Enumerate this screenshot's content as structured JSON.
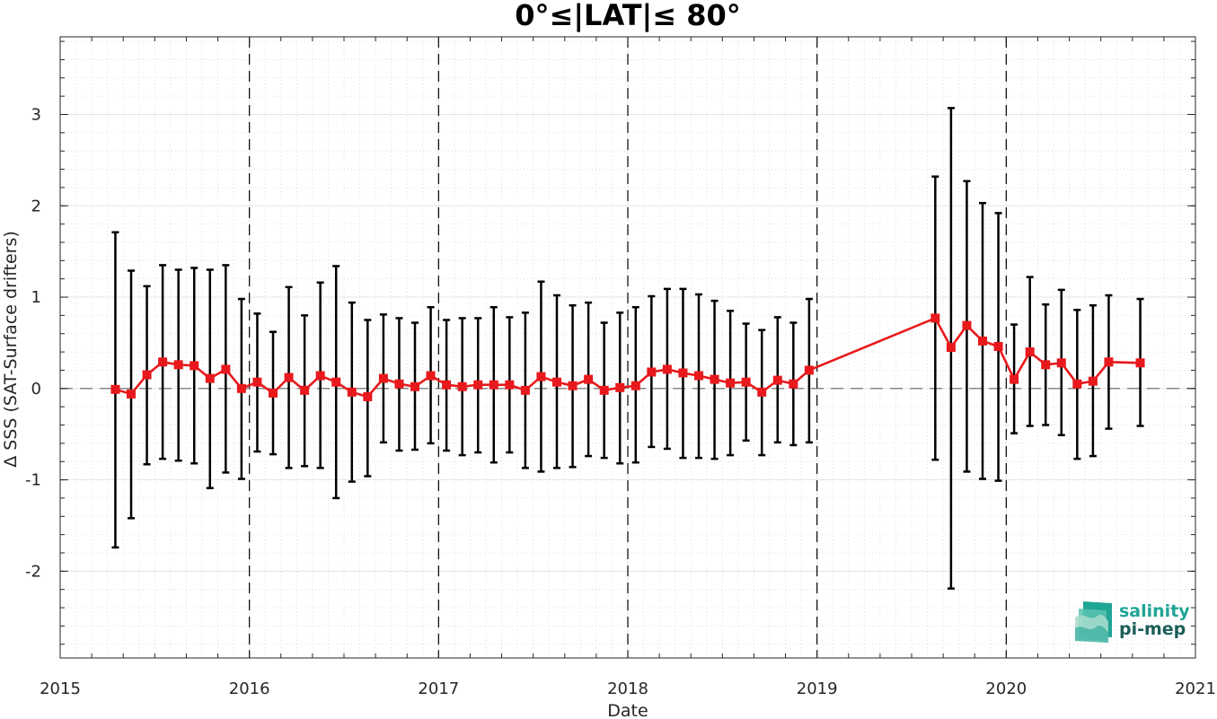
{
  "chart_data": {
    "type": "line",
    "title": "0°≤|LAT|≤ 80°",
    "xlabel": "Date",
    "ylabel": "Δ SSS (SAT-Surface drifters)",
    "xlim": [
      2015,
      2021
    ],
    "ylim": [
      -2.95,
      3.85
    ],
    "x_ticks": [
      "2015",
      "2016",
      "2017",
      "2018",
      "2019",
      "2020",
      "2021"
    ],
    "y_ticks": [
      "-2",
      "-1",
      "0",
      "1",
      "2",
      "3"
    ],
    "grid": true,
    "vertical_dashed_lines": [
      2016,
      2017,
      2018,
      2019,
      2020
    ],
    "zero_reference_line": 0,
    "colors": {
      "series": "#e8191c",
      "errorbar": "#000000",
      "logo": "#1fa596"
    },
    "logo_text": [
      "salinity",
      "pi-mep"
    ],
    "series": [
      {
        "x": [
          "2015-04",
          "2015-05",
          "2015-06",
          "2015-07",
          "2015-08",
          "2015-09",
          "2015-10",
          "2015-11",
          "2015-12",
          "2016-01",
          "2016-02",
          "2016-03",
          "2016-04",
          "2016-05",
          "2016-06",
          "2016-07",
          "2016-08",
          "2016-09",
          "2016-10",
          "2016-11",
          "2016-12",
          "2017-01",
          "2017-02",
          "2017-03",
          "2017-04",
          "2017-05",
          "2017-06",
          "2017-07",
          "2017-08",
          "2017-09",
          "2017-10",
          "2017-11",
          "2017-12",
          "2018-01",
          "2018-02",
          "2018-03",
          "2018-04",
          "2018-05",
          "2018-06",
          "2018-07",
          "2018-08",
          "2018-09",
          "2018-10",
          "2018-11",
          "2018-12",
          "2019-08",
          "2019-09",
          "2019-10",
          "2019-11",
          "2019-12",
          "2020-01",
          "2020-02",
          "2020-03",
          "2020-04",
          "2020-05",
          "2020-06",
          "2020-07",
          "2020-09"
        ],
        "values": [
          -0.01,
          -0.06,
          0.15,
          0.29,
          0.26,
          0.25,
          0.11,
          0.21,
          0.0,
          0.07,
          -0.05,
          0.12,
          -0.02,
          0.14,
          0.07,
          -0.04,
          -0.09,
          0.11,
          0.05,
          0.02,
          0.14,
          0.04,
          0.02,
          0.04,
          0.04,
          0.04,
          -0.02,
          0.13,
          0.07,
          0.03,
          0.1,
          -0.02,
          0.01,
          0.03,
          0.18,
          0.21,
          0.17,
          0.14,
          0.1,
          0.06,
          0.07,
          -0.04,
          0.09,
          0.05,
          0.2,
          0.77,
          0.45,
          0.69,
          0.52,
          0.46,
          0.1,
          0.4,
          0.26,
          0.28,
          0.05,
          0.08,
          0.29,
          0.28
        ],
        "err_low": [
          -1.74,
          -1.42,
          -0.83,
          -0.77,
          -0.79,
          -0.82,
          -1.09,
          -0.92,
          -0.99,
          -0.69,
          -0.72,
          -0.87,
          -0.85,
          -0.87,
          -1.2,
          -1.02,
          -0.96,
          -0.59,
          -0.68,
          -0.67,
          -0.6,
          -0.68,
          -0.73,
          -0.7,
          -0.81,
          -0.7,
          -0.87,
          -0.91,
          -0.87,
          -0.86,
          -0.74,
          -0.76,
          -0.82,
          -0.81,
          -0.64,
          -0.66,
          -0.76,
          -0.76,
          -0.77,
          -0.73,
          -0.57,
          -0.73,
          -0.59,
          -0.62,
          -0.59,
          -0.78,
          -2.19,
          -0.91,
          -0.99,
          -1.01,
          -0.49,
          -0.41,
          -0.4,
          -0.51,
          -0.77,
          -0.74,
          -0.44,
          -0.41
        ],
        "err_high": [
          1.71,
          1.29,
          1.12,
          1.35,
          1.3,
          1.32,
          1.3,
          1.35,
          0.98,
          0.82,
          0.62,
          1.11,
          0.8,
          1.16,
          1.34,
          0.94,
          0.75,
          0.81,
          0.77,
          0.72,
          0.89,
          0.75,
          0.77,
          0.77,
          0.89,
          0.78,
          0.83,
          1.17,
          1.02,
          0.91,
          0.94,
          0.72,
          0.83,
          0.89,
          1.01,
          1.09,
          1.09,
          1.03,
          0.96,
          0.85,
          0.71,
          0.64,
          0.78,
          0.72,
          0.98,
          2.32,
          3.07,
          2.27,
          2.03,
          1.92,
          0.7,
          1.22,
          0.92,
          1.08,
          0.86,
          0.91,
          1.02,
          0.98
        ]
      }
    ]
  }
}
